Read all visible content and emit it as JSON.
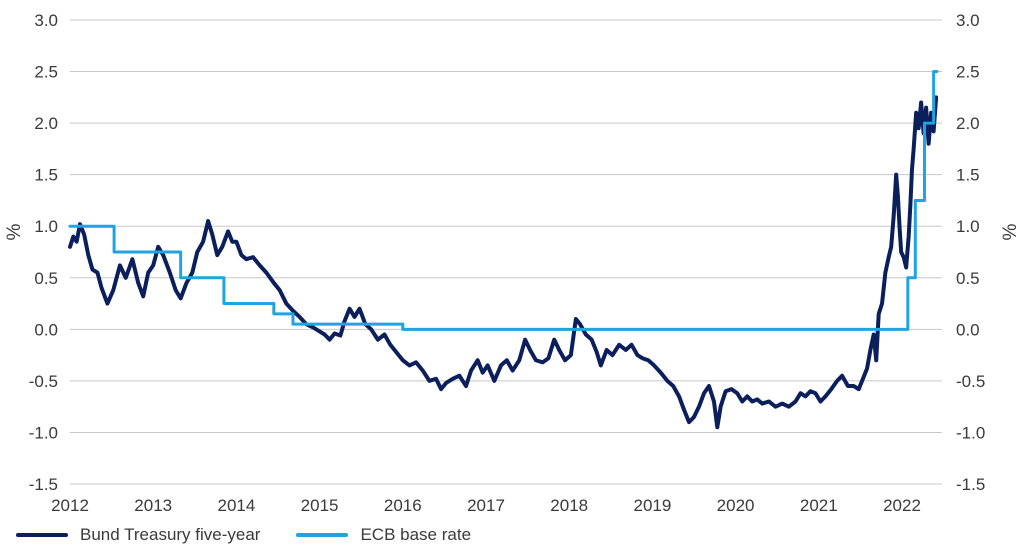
{
  "chart_data": {
    "type": "line",
    "title": "",
    "xlabel": "",
    "ylabel": "%",
    "ylabel_right": "%",
    "xlim": [
      2012.0,
      2022.42
    ],
    "ylim": [
      -1.5,
      3.0
    ],
    "yticks": [
      "3.0",
      "2.5",
      "2.0",
      "1.5",
      "1.0",
      "0.5",
      "0.0",
      "-0.5",
      "-1.0",
      "-1.5"
    ],
    "ytick_values": [
      3.0,
      2.5,
      2.0,
      1.5,
      1.0,
      0.5,
      0.0,
      -0.5,
      -1.0,
      -1.5
    ],
    "xticks": [
      "2012",
      "2013",
      "2014",
      "2015",
      "2016",
      "2017",
      "2018",
      "2019",
      "2020",
      "2021",
      "2022"
    ],
    "xtick_values": [
      2012,
      2013,
      2014,
      2015,
      2016,
      2017,
      2018,
      2019,
      2020,
      2021,
      2022
    ],
    "grid": "horizontal",
    "legend_position": "bottom-left",
    "series": [
      {
        "name": "Bund Treasury five-year",
        "color": "#0b1f5c",
        "points": [
          [
            2012.0,
            0.8
          ],
          [
            2012.04,
            0.9
          ],
          [
            2012.08,
            0.85
          ],
          [
            2012.12,
            1.02
          ],
          [
            2012.17,
            0.92
          ],
          [
            2012.22,
            0.72
          ],
          [
            2012.27,
            0.58
          ],
          [
            2012.33,
            0.55
          ],
          [
            2012.38,
            0.4
          ],
          [
            2012.45,
            0.25
          ],
          [
            2012.52,
            0.38
          ],
          [
            2012.6,
            0.62
          ],
          [
            2012.67,
            0.5
          ],
          [
            2012.75,
            0.68
          ],
          [
            2012.82,
            0.45
          ],
          [
            2012.88,
            0.32
          ],
          [
            2012.94,
            0.55
          ],
          [
            2013.0,
            0.62
          ],
          [
            2013.06,
            0.8
          ],
          [
            2013.12,
            0.72
          ],
          [
            2013.2,
            0.55
          ],
          [
            2013.27,
            0.38
          ],
          [
            2013.33,
            0.3
          ],
          [
            2013.4,
            0.45
          ],
          [
            2013.47,
            0.55
          ],
          [
            2013.53,
            0.75
          ],
          [
            2013.6,
            0.85
          ],
          [
            2013.66,
            1.05
          ],
          [
            2013.71,
            0.92
          ],
          [
            2013.77,
            0.72
          ],
          [
            2013.83,
            0.8
          ],
          [
            2013.9,
            0.95
          ],
          [
            2013.95,
            0.85
          ],
          [
            2014.0,
            0.85
          ],
          [
            2014.06,
            0.72
          ],
          [
            2014.12,
            0.68
          ],
          [
            2014.2,
            0.7
          ],
          [
            2014.28,
            0.62
          ],
          [
            2014.36,
            0.55
          ],
          [
            2014.45,
            0.45
          ],
          [
            2014.52,
            0.38
          ],
          [
            2014.6,
            0.25
          ],
          [
            2014.68,
            0.18
          ],
          [
            2014.76,
            0.12
          ],
          [
            2014.84,
            0.05
          ],
          [
            2014.92,
            0.02
          ],
          [
            2015.0,
            -0.02
          ],
          [
            2015.06,
            -0.05
          ],
          [
            2015.12,
            -0.1
          ],
          [
            2015.18,
            -0.04
          ],
          [
            2015.25,
            -0.06
          ],
          [
            2015.3,
            0.08
          ],
          [
            2015.36,
            0.2
          ],
          [
            2015.42,
            0.12
          ],
          [
            2015.48,
            0.2
          ],
          [
            2015.55,
            0.05
          ],
          [
            2015.62,
            0.0
          ],
          [
            2015.7,
            -0.1
          ],
          [
            2015.78,
            -0.05
          ],
          [
            2015.85,
            -0.15
          ],
          [
            2015.92,
            -0.22
          ],
          [
            2016.0,
            -0.3
          ],
          [
            2016.08,
            -0.35
          ],
          [
            2016.16,
            -0.32
          ],
          [
            2016.24,
            -0.4
          ],
          [
            2016.32,
            -0.5
          ],
          [
            2016.4,
            -0.48
          ],
          [
            2016.46,
            -0.58
          ],
          [
            2016.52,
            -0.52
          ],
          [
            2016.6,
            -0.48
          ],
          [
            2016.68,
            -0.45
          ],
          [
            2016.76,
            -0.55
          ],
          [
            2016.82,
            -0.4
          ],
          [
            2016.9,
            -0.3
          ],
          [
            2016.96,
            -0.42
          ],
          [
            2017.02,
            -0.35
          ],
          [
            2017.1,
            -0.5
          ],
          [
            2017.18,
            -0.35
          ],
          [
            2017.25,
            -0.3
          ],
          [
            2017.32,
            -0.4
          ],
          [
            2017.4,
            -0.3
          ],
          [
            2017.47,
            -0.1
          ],
          [
            2017.53,
            -0.2
          ],
          [
            2017.6,
            -0.3
          ],
          [
            2017.68,
            -0.32
          ],
          [
            2017.75,
            -0.28
          ],
          [
            2017.82,
            -0.1
          ],
          [
            2017.88,
            -0.2
          ],
          [
            2017.95,
            -0.3
          ],
          [
            2018.02,
            -0.25
          ],
          [
            2018.08,
            0.1
          ],
          [
            2018.13,
            0.05
          ],
          [
            2018.2,
            -0.05
          ],
          [
            2018.27,
            -0.1
          ],
          [
            2018.33,
            -0.22
          ],
          [
            2018.38,
            -0.35
          ],
          [
            2018.45,
            -0.2
          ],
          [
            2018.52,
            -0.25
          ],
          [
            2018.6,
            -0.15
          ],
          [
            2018.68,
            -0.2
          ],
          [
            2018.75,
            -0.15
          ],
          [
            2018.82,
            -0.25
          ],
          [
            2018.88,
            -0.28
          ],
          [
            2018.95,
            -0.3
          ],
          [
            2019.02,
            -0.35
          ],
          [
            2019.1,
            -0.42
          ],
          [
            2019.18,
            -0.5
          ],
          [
            2019.25,
            -0.55
          ],
          [
            2019.32,
            -0.65
          ],
          [
            2019.38,
            -0.78
          ],
          [
            2019.44,
            -0.9
          ],
          [
            2019.5,
            -0.85
          ],
          [
            2019.56,
            -0.75
          ],
          [
            2019.62,
            -0.62
          ],
          [
            2019.68,
            -0.55
          ],
          [
            2019.74,
            -0.7
          ],
          [
            2019.78,
            -0.95
          ],
          [
            2019.82,
            -0.75
          ],
          [
            2019.88,
            -0.6
          ],
          [
            2019.95,
            -0.58
          ],
          [
            2020.02,
            -0.62
          ],
          [
            2020.08,
            -0.7
          ],
          [
            2020.14,
            -0.65
          ],
          [
            2020.2,
            -0.7
          ],
          [
            2020.26,
            -0.68
          ],
          [
            2020.32,
            -0.72
          ],
          [
            2020.4,
            -0.7
          ],
          [
            2020.48,
            -0.75
          ],
          [
            2020.56,
            -0.72
          ],
          [
            2020.64,
            -0.75
          ],
          [
            2020.72,
            -0.7
          ],
          [
            2020.78,
            -0.62
          ],
          [
            2020.84,
            -0.65
          ],
          [
            2020.9,
            -0.6
          ],
          [
            2020.96,
            -0.62
          ],
          [
            2021.02,
            -0.7
          ],
          [
            2021.08,
            -0.65
          ],
          [
            2021.15,
            -0.58
          ],
          [
            2021.22,
            -0.5
          ],
          [
            2021.28,
            -0.45
          ],
          [
            2021.35,
            -0.55
          ],
          [
            2021.42,
            -0.55
          ],
          [
            2021.48,
            -0.58
          ],
          [
            2021.53,
            -0.48
          ],
          [
            2021.58,
            -0.38
          ],
          [
            2021.62,
            -0.2
          ],
          [
            2021.66,
            -0.05
          ],
          [
            2021.69,
            -0.3
          ],
          [
            2021.72,
            0.15
          ],
          [
            2021.76,
            0.25
          ],
          [
            2021.8,
            0.55
          ],
          [
            2021.84,
            0.7
          ],
          [
            2021.87,
            0.8
          ],
          [
            2021.9,
            1.1
          ],
          [
            2021.93,
            1.5
          ],
          [
            2021.95,
            1.3
          ],
          [
            2021.97,
            1.0
          ],
          [
            2021.99,
            0.75
          ],
          [
            2022.02,
            0.7
          ],
          [
            2022.05,
            0.6
          ],
          [
            2022.08,
            0.9
          ],
          [
            2022.1,
            1.2
          ],
          [
            2022.12,
            1.55
          ],
          [
            2022.14,
            1.75
          ],
          [
            2022.17,
            2.1
          ],
          [
            2022.2,
            1.95
          ],
          [
            2022.23,
            2.2
          ],
          [
            2022.26,
            1.9
          ],
          [
            2022.29,
            2.15
          ],
          [
            2022.32,
            1.8
          ],
          [
            2022.35,
            2.1
          ],
          [
            2022.38,
            1.92
          ],
          [
            2022.41,
            2.25
          ]
        ]
      },
      {
        "name": "ECB base rate",
        "color": "#1fa4e0",
        "type": "step",
        "points": [
          [
            2012.0,
            1.0
          ],
          [
            2012.53,
            0.75
          ],
          [
            2013.33,
            0.5
          ],
          [
            2013.85,
            0.25
          ],
          [
            2014.45,
            0.15
          ],
          [
            2014.68,
            0.05
          ],
          [
            2016.0,
            0.0
          ],
          [
            2022.07,
            0.5
          ],
          [
            2022.16,
            1.25
          ],
          [
            2022.27,
            2.0
          ],
          [
            2022.38,
            2.5
          ],
          [
            2022.42,
            2.5
          ]
        ]
      }
    ]
  }
}
